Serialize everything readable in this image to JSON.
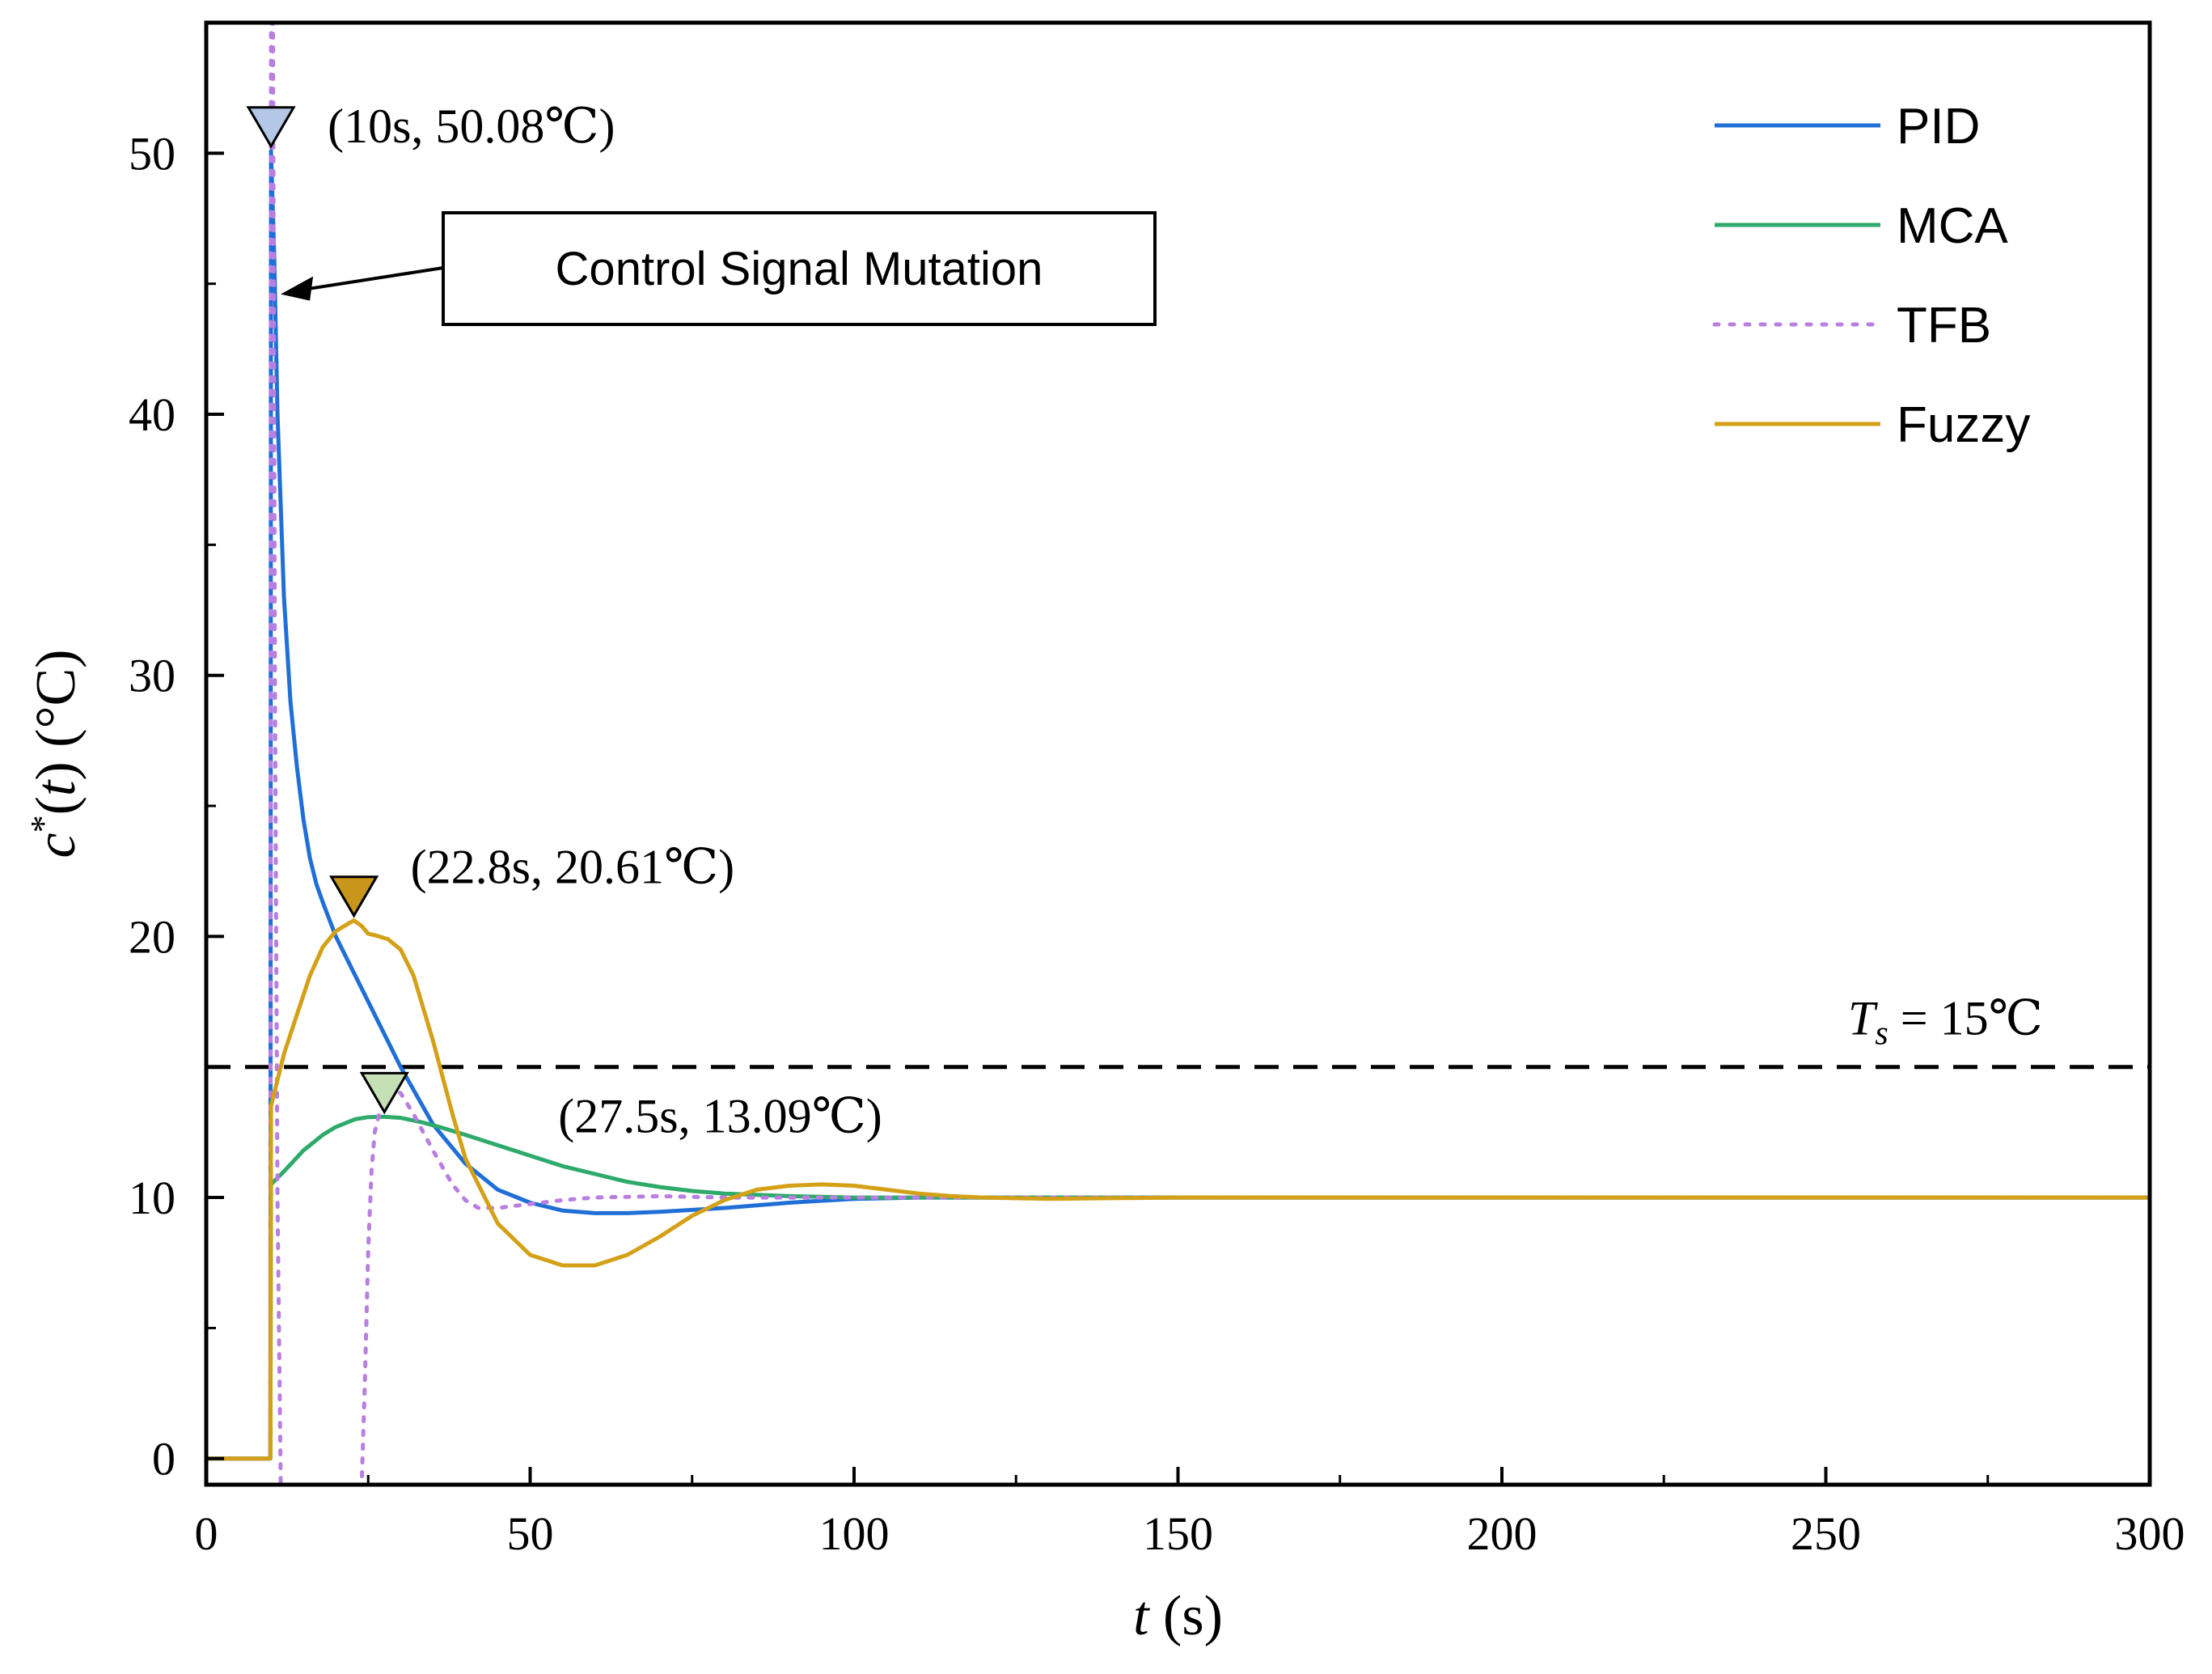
{
  "chart_data": {
    "type": "line",
    "xlabel": "t (s)",
    "ylabel": "c*(t) (°C)",
    "xlim": [
      0,
      300
    ],
    "ylim": [
      -1,
      55
    ],
    "xticks": [
      0,
      50,
      100,
      150,
      200,
      250,
      300
    ],
    "xtick_labels": [
      "0",
      "50",
      "100",
      "150",
      "200",
      "250",
      "300"
    ],
    "yticks": [
      0,
      10,
      20,
      30,
      40,
      50
    ],
    "ytick_labels": [
      "0",
      "10",
      "20",
      "30",
      "40",
      "50"
    ],
    "legend_position": "top-right",
    "series": [
      {
        "name": "PID",
        "color": "#1f6fd6",
        "style": "solid",
        "x": [
          0,
          9.9,
          10,
          10.5,
          11,
          12,
          13,
          14,
          15,
          16,
          17,
          18,
          20,
          22,
          25,
          28,
          30,
          35,
          40,
          45,
          50,
          55,
          60,
          65,
          70,
          80,
          90,
          100,
          110,
          120,
          150,
          200,
          250,
          300
        ],
        "y": [
          0,
          0,
          50.08,
          46,
          40,
          33,
          29,
          26.5,
          24.5,
          23,
          22,
          21.3,
          20,
          19,
          17.5,
          16,
          15,
          12.8,
          11.3,
          10.3,
          9.8,
          9.5,
          9.4,
          9.4,
          9.45,
          9.6,
          9.8,
          9.95,
          10.0,
          10.0,
          10.0,
          10.0,
          10.0,
          10.0
        ]
      },
      {
        "name": "MCA",
        "color": "#2eaa6a",
        "style": "solid",
        "x": [
          0,
          9.9,
          10,
          12,
          15,
          18,
          20,
          23,
          25,
          27.5,
          30,
          33,
          36,
          40,
          45,
          50,
          55,
          60,
          65,
          70,
          75,
          80,
          90,
          100,
          110,
          130,
          150,
          200,
          250,
          300
        ],
        "y": [
          0,
          0,
          10.5,
          11,
          11.8,
          12.4,
          12.7,
          13.0,
          13.08,
          13.09,
          13.05,
          12.9,
          12.7,
          12.4,
          12.0,
          11.6,
          11.2,
          10.9,
          10.6,
          10.4,
          10.25,
          10.15,
          10.05,
          10.0,
          10.0,
          10.0,
          10.0,
          10.0,
          10.0,
          10.0
        ]
      },
      {
        "name": "TFB",
        "color": "#b87fe0",
        "style": "dotted",
        "x": [
          0,
          9.9,
          10,
          10.3,
          10.6,
          11,
          11.5,
          12,
          12.5,
          13,
          13.3,
          24,
          24.5,
          25,
          25.5,
          26,
          27,
          28,
          29,
          30,
          32,
          35,
          38,
          40,
          42,
          45,
          50,
          55,
          60,
          70,
          80,
          100,
          150,
          200,
          250,
          300
        ],
        "y": [
          0,
          0,
          55,
          55,
          30,
          10,
          -1,
          -1,
          -1,
          -1,
          -1,
          -1,
          3,
          8,
          11,
          12.5,
          13.5,
          14,
          14.1,
          14,
          13.2,
          11.8,
          10.5,
          9.9,
          9.6,
          9.6,
          9.75,
          9.9,
          10.0,
          10.05,
          10.0,
          10.0,
          10.0,
          10.0,
          10.0,
          10.0
        ]
      },
      {
        "name": "Fuzzy",
        "color": "#d4a017",
        "style": "solid",
        "x": [
          0,
          9.9,
          10,
          11,
          12,
          14,
          16,
          18,
          20,
          22,
          22.8,
          24,
          25,
          26,
          28,
          30,
          32,
          35,
          38,
          40,
          45,
          50,
          55,
          60,
          65,
          70,
          75,
          80,
          85,
          90,
          95,
          100,
          105,
          110,
          115,
          120,
          130,
          150,
          200,
          250,
          300
        ],
        "y": [
          0,
          0,
          13.5,
          14.5,
          15.5,
          17,
          18.5,
          19.6,
          20.2,
          20.5,
          20.61,
          20.4,
          20.1,
          20.05,
          19.9,
          19.5,
          18.5,
          16,
          13.2,
          11.5,
          9,
          7.8,
          7.4,
          7.4,
          7.8,
          8.5,
          9.3,
          9.9,
          10.3,
          10.45,
          10.5,
          10.45,
          10.3,
          10.15,
          10.05,
          10.0,
          9.95,
          10.0,
          10.0,
          10.0,
          10.0
        ]
      }
    ],
    "reference_line": {
      "y": 15,
      "label": "T",
      "subscript": "s",
      "label_rest": " = 15℃",
      "color": "#000000",
      "style": "dashed"
    },
    "markers": [
      {
        "x": 10,
        "y": 50.08,
        "label": "(10s, 50.08℃)",
        "color": "#b4c7e7"
      },
      {
        "x": 22.8,
        "y": 20.61,
        "label": "(22.8s, 20.61℃)",
        "color": "#c8961a"
      },
      {
        "x": 27.5,
        "y": 13.09,
        "label": "(27.5s, 13.09℃)",
        "color": "#c5e0b4"
      }
    ],
    "callout": {
      "text": "Control Signal Mutation"
    }
  }
}
